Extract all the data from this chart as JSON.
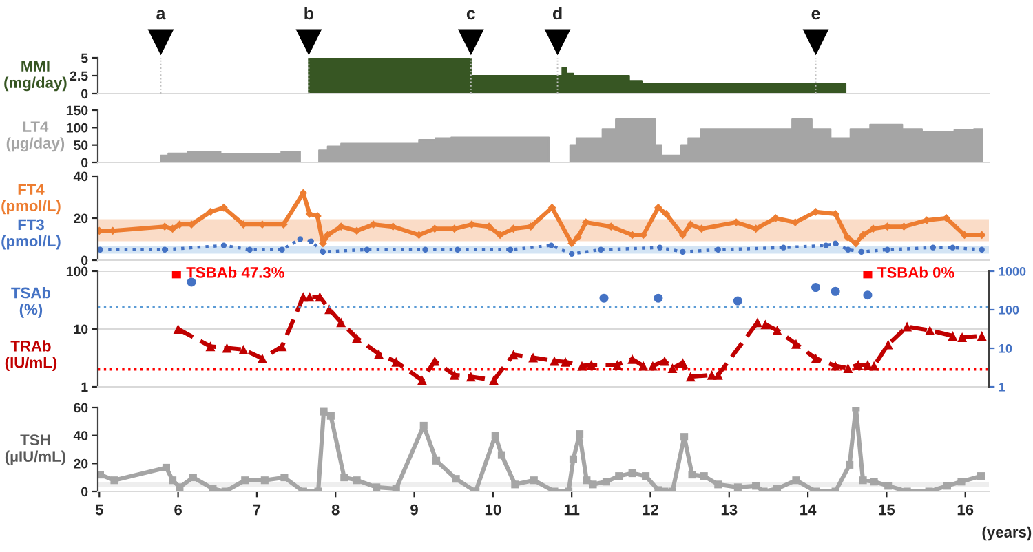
{
  "chart_data": [
    {
      "type": "area",
      "ylabel": "MMI\n(mg/day)",
      "xlim": [
        4.98,
        16.3
      ],
      "ylim": [
        0,
        5
      ],
      "yticks": [
        0,
        2.5,
        5
      ],
      "tick_labels": "y",
      "grid": false,
      "legend": false,
      "x": [
        7.66,
        7.66,
        9.72,
        9.72,
        10.88,
        10.88,
        10.93,
        10.93,
        11.02,
        11.02,
        11.73,
        11.73,
        11.89,
        11.89,
        14.48,
        14.48
      ],
      "series": [
        {
          "color": "#375623",
          "values": [
            0,
            5,
            5,
            2.5,
            2.5,
            3.6,
            3.6,
            2.8,
            2.8,
            2.5,
            2.5,
            1.8,
            1.8,
            1.4,
            1.4,
            0
          ]
        }
      ],
      "ref_lines": [
        {
          "axis": "x",
          "value": 5.78,
          "label": "a"
        },
        {
          "axis": "x",
          "value": 7.66,
          "label": "b"
        },
        {
          "axis": "x",
          "value": 9.72,
          "label": "c"
        },
        {
          "axis": "x",
          "value": 10.82,
          "label": "d"
        },
        {
          "axis": "x",
          "value": 14.1,
          "label": "e"
        }
      ]
    },
    {
      "type": "area",
      "ylabel": "LT4\n(µg/day)",
      "xlim": [
        4.98,
        16.3
      ],
      "ylim": [
        0,
        150
      ],
      "yticks": [
        0,
        50,
        100,
        150
      ],
      "tick_labels": "y",
      "grid": false,
      "legend": false,
      "x": [
        5.78,
        5.78,
        5.875,
        5.875,
        6.12,
        6.12,
        6.54,
        6.54,
        7.31,
        7.31,
        7.55,
        7.55,
        7.67,
        7.79,
        7.79,
        7.9,
        7.9,
        8.07,
        8.07,
        9.06,
        9.06,
        9.27,
        9.27,
        9.47,
        9.47,
        10.71,
        10.71,
        10.85,
        10.98,
        10.98,
        11.06,
        11.06,
        11.39,
        11.39,
        11.56,
        11.56,
        12.06,
        12.06,
        12.14,
        12.14,
        12.39,
        12.39,
        12.48,
        12.48,
        12.64,
        12.64,
        13.8,
        13.8,
        14.05,
        14.05,
        14.29,
        14.29,
        14.54,
        14.54,
        14.79,
        14.79,
        15.2,
        15.2,
        15.45,
        15.45,
        15.86,
        15.86,
        16.11,
        16.11,
        16.22,
        16.22
      ],
      "series": [
        {
          "color": "#a5a5a5",
          "values": [
            0,
            20,
            20,
            26,
            26,
            31,
            31,
            24,
            24,
            31,
            31,
            0,
            null,
            0,
            35,
            35,
            46,
            46,
            54,
            54,
            65,
            65,
            70,
            70,
            72,
            72,
            0,
            null,
            0,
            50,
            50,
            70,
            70,
            96,
            96,
            124,
            124,
            50,
            50,
            20,
            20,
            50,
            50,
            70,
            70,
            96,
            96,
            124,
            124,
            96,
            96,
            70,
            70,
            96,
            96,
            109,
            109,
            96,
            96,
            87,
            87,
            93,
            93,
            96,
            96,
            0
          ]
        }
      ]
    },
    {
      "type": "line",
      "xlim": [
        4.98,
        16.3
      ],
      "ylim": [
        0,
        40
      ],
      "yticks": [
        0,
        20,
        40
      ],
      "tick_labels": "y",
      "grid": false,
      "legend": "left",
      "bands": [
        {
          "axis": "y",
          "from": 9,
          "to": 19.5,
          "color": "#f4b183"
        },
        {
          "axis": "y",
          "from": 3.1,
          "to": 6.8,
          "color": "#9dc3e6"
        }
      ],
      "series": [
        {
          "name": "FT4\n(pmol/L)",
          "color": "#ed7d31",
          "marker": "diamond",
          "line_style": "solid",
          "x": [
            5.0,
            5.17,
            5.83,
            5.93,
            6.02,
            6.17,
            6.41,
            6.58,
            6.83,
            7.07,
            7.34,
            7.59,
            7.67,
            7.77,
            7.84,
            7.9,
            8.07,
            8.27,
            8.48,
            8.73,
            9.06,
            9.26,
            9.51,
            9.73,
            9.95,
            10.09,
            10.26,
            10.48,
            10.75,
            11.0,
            11.08,
            11.18,
            11.5,
            11.77,
            11.91,
            12.1,
            12.2,
            12.41,
            12.51,
            12.65,
            13.09,
            13.34,
            13.59,
            13.84,
            14.1,
            14.35,
            14.5,
            14.61,
            14.7,
            14.83,
            15.01,
            15.22,
            15.51,
            15.76,
            15.99,
            16.21
          ],
          "values": [
            14,
            14,
            16,
            15,
            17,
            17,
            23,
            25,
            17,
            17,
            17,
            32,
            22,
            21,
            8,
            12,
            16,
            14,
            17,
            16,
            12,
            15,
            15,
            17,
            16,
            12,
            15,
            16,
            25,
            8,
            11,
            18,
            16,
            12,
            12,
            25,
            22,
            12,
            17,
            15,
            18,
            15,
            20,
            18,
            23,
            22,
            11,
            8,
            12,
            15,
            16,
            16,
            19,
            20,
            12,
            12
          ]
        },
        {
          "name": "FT3\n(pmol/L)",
          "color": "#4472c4",
          "marker": "circle",
          "line_style": "dotted",
          "x": [
            5.01,
            5.83,
            6.58,
            6.91,
            7.32,
            7.55,
            7.69,
            7.84,
            8.4,
            9.14,
            9.55,
            10.22,
            10.74,
            11.0,
            11.37,
            12.12,
            12.41,
            12.86,
            13.69,
            14.23,
            14.35,
            14.51,
            14.68,
            15.01,
            15.59,
            15.84,
            16.21
          ],
          "values": [
            5,
            5,
            7,
            5,
            5,
            10,
            9,
            4,
            5,
            5,
            5,
            5,
            7,
            3,
            5,
            6,
            4,
            5,
            6,
            7,
            8,
            5,
            4,
            5,
            6,
            6,
            5
          ]
        }
      ]
    },
    {
      "type": "line",
      "xlim": [
        4.98,
        16.3
      ],
      "ylim": [
        1,
        100
      ],
      "yticks": [
        1,
        10,
        100
      ],
      "log": true,
      "tick_labels": "y",
      "grid": "y",
      "legend": "left",
      "ref_lines": [
        {
          "axis": "y",
          "value": 2,
          "color": "#ff0000",
          "line_style": "dotted"
        }
      ],
      "series": [
        {
          "name": "TRAb\n(IU/mL)",
          "type": "line",
          "axis": "y",
          "color": "#c00000",
          "marker": "triangle",
          "line_style": "dashed",
          "x": [
            6.0,
            6.41,
            6.62,
            6.83,
            7.07,
            7.32,
            7.59,
            7.67,
            7.8,
            7.92,
            8.07,
            8.27,
            8.55,
            8.77,
            9.1,
            9.26,
            9.51,
            9.72,
            10.01,
            10.26,
            10.51,
            10.78,
            10.92,
            11.13,
            11.25,
            11.58,
            11.77,
            11.91,
            12.03,
            12.18,
            12.28,
            12.41,
            12.51,
            12.78,
            12.86,
            13.36,
            13.46,
            13.61,
            13.85,
            14.1,
            14.35,
            14.51,
            14.64,
            14.76,
            14.84,
            15.02,
            15.26,
            15.55,
            15.84,
            15.96,
            16.21
          ],
          "values": [
            10,
            5,
            4.7,
            4.4,
            3.1,
            5,
            36,
            36,
            36,
            22,
            13,
            7,
            3.7,
            2.7,
            1.3,
            2.8,
            1.6,
            1.5,
            1.3,
            3.6,
            3.2,
            2.8,
            2.7,
            2.3,
            2.4,
            2.4,
            3,
            2.3,
            2.3,
            2.8,
            2.1,
            2.6,
            1.5,
            1.6,
            1.6,
            13,
            12,
            9.5,
            5.5,
            3.1,
            2.3,
            2.1,
            2.4,
            2.4,
            2.3,
            5.4,
            11,
            9.5,
            7.6,
            7.2,
            7.6
          ]
        },
        {
          "type": "scatter",
          "axis": "y",
          "color": "#ff0000",
          "marker": "square",
          "x": [
            5.98,
            14.76
          ],
          "values": [
            90,
            90
          ],
          "value_labels": [
            "TSBAb 47.3%",
            "TSBAb 0%"
          ]
        }
      ]
    },
    {
      "type": "scatter",
      "xlim": [
        4.98,
        16.3
      ],
      "y2lim": [
        1,
        1000
      ],
      "y2ticks": [
        1,
        10,
        100,
        1000
      ],
      "log": "y2",
      "tick_labels": "y",
      "legend": "left",
      "ref_lines": [
        {
          "axis": "y2",
          "value": 120,
          "color": "#5b9bd5",
          "line_style": "dotted"
        }
      ],
      "series": [
        {
          "name": "TSAb\n(%)",
          "axis": "y2",
          "color": "#4472c4",
          "marker": "circle",
          "x": [
            6.17,
            11.41,
            12.1,
            13.11,
            14.1,
            14.35,
            14.76
          ],
          "values": [
            520,
            200,
            200,
            170,
            380,
            300,
            240
          ]
        }
      ]
    },
    {
      "type": "line",
      "ylabel": "TSH\n(µIU/mL)",
      "xlabel": "(years)",
      "xlim": [
        4.98,
        16.3
      ],
      "ylim": [
        0,
        60
      ],
      "yticks": [
        0,
        20,
        40,
        60
      ],
      "xticks": [
        5,
        6,
        7,
        8,
        9,
        10,
        11,
        12,
        13,
        14,
        15,
        16
      ],
      "grid": false,
      "legend": false,
      "bands": [
        {
          "axis": "y",
          "from": 3.3,
          "to": 6.5,
          "color": "#d9d9d9"
        }
      ],
      "series": [
        {
          "color": "#a5a5a5",
          "marker": "square",
          "line_style": "solid",
          "x": [
            5.01,
            5.19,
            5.85,
            5.93,
            6.02,
            6.19,
            6.44,
            6.6,
            6.85,
            7.1,
            7.35,
            7.59,
            7.78,
            7.85,
            7.94,
            8.11,
            8.27,
            8.52,
            8.77,
            9.12,
            9.28,
            9.53,
            9.78,
            10.03,
            10.11,
            10.28,
            10.52,
            10.78,
            10.96,
            11.02,
            11.1,
            11.19,
            11.27,
            11.44,
            11.6,
            11.77,
            11.94,
            12.1,
            12.18,
            12.28,
            12.43,
            12.53,
            12.68,
            12.86,
            13.11,
            13.34,
            13.44,
            13.61,
            13.85,
            14.1,
            14.35,
            14.53,
            14.61,
            14.7,
            14.84,
            15.02,
            15.26,
            15.54,
            15.77,
            15.95,
            16.2
          ],
          "values": [
            12,
            8,
            17,
            8,
            3,
            10,
            2,
            0,
            8,
            8,
            10,
            0,
            0,
            57,
            54,
            10,
            8,
            3,
            2,
            47,
            22,
            9,
            0,
            40,
            26,
            5,
            8,
            0,
            0,
            23,
            41,
            8,
            5,
            7,
            11,
            13,
            11,
            1,
            0,
            0,
            39,
            12,
            11,
            5,
            3,
            4,
            0,
            2,
            8,
            0,
            0,
            19,
            60,
            8,
            7,
            4,
            0,
            0,
            4,
            7,
            11
          ]
        }
      ]
    }
  ]
}
